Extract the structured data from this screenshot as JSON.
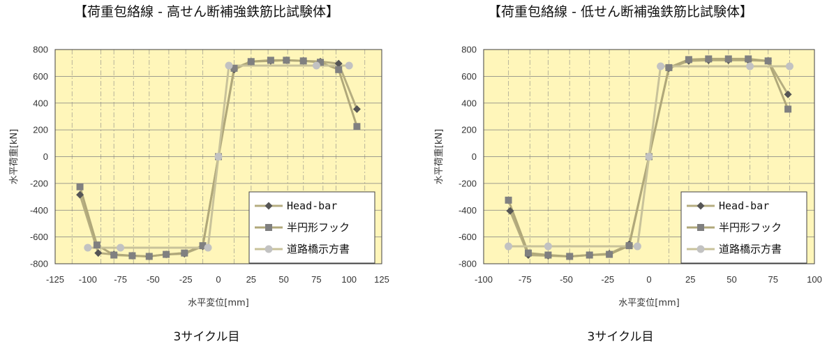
{
  "chart_data": [
    {
      "type": "line",
      "title": "【荷重包絡線 - 高せん断補強鉄筋比試験体】",
      "caption": "3サイクル目",
      "xlabel": "水平変位[mm]",
      "ylabel": "水平荷重[kN]",
      "xlim": [
        -125,
        125
      ],
      "ylim": [
        -800,
        800
      ],
      "xticks": [
        -125,
        -100,
        -75,
        -50,
        -25,
        0,
        25,
        50,
        75,
        100,
        125
      ],
      "yticks": [
        -800,
        -600,
        -400,
        -200,
        0,
        200,
        400,
        600,
        800
      ],
      "vgrid": [
        -112,
        -90,
        -80,
        -65,
        -53,
        -38,
        -25,
        -12,
        12,
        25,
        38,
        53,
        65,
        80,
        90,
        112
      ],
      "background": "#fff6ba",
      "legend_position": "bottom-right",
      "series": [
        {
          "name": "Head-bar",
          "marker": "diamond",
          "color": "#b5ad80",
          "marker_color": "#555555",
          "x": [
            -106,
            -92,
            -80,
            -66,
            -53,
            -40,
            -26,
            -12,
            0,
            12,
            25,
            40,
            52,
            65,
            78,
            92,
            106
          ],
          "y": [
            -285,
            -720,
            -730,
            -740,
            -745,
            -730,
            -725,
            -670,
            0,
            650,
            710,
            715,
            720,
            715,
            710,
            695,
            355
          ]
        },
        {
          "name": "半円形フック",
          "marker": "square",
          "color": "#b0a87a",
          "marker_color": "#808080",
          "x": [
            -106,
            -93,
            -80,
            -66,
            -53,
            -40,
            -26,
            -12,
            0,
            12,
            25,
            40,
            52,
            65,
            78,
            92,
            106
          ],
          "y": [
            -225,
            -660,
            -735,
            -740,
            -745,
            -730,
            -720,
            -665,
            0,
            660,
            710,
            720,
            720,
            715,
            705,
            650,
            225
          ]
        },
        {
          "name": "道路橋示方書",
          "marker": "circle",
          "color": "#c8c29a",
          "marker_color": "#c2c2c2",
          "x": [
            -100,
            -75,
            -8,
            0,
            8,
            75,
            100
          ],
          "y": [
            -680,
            -680,
            -680,
            0,
            680,
            680,
            680
          ]
        }
      ]
    },
    {
      "type": "line",
      "title": "【荷重包絡線 - 低せん断補強鉄筋比試験体】",
      "caption": "3サイクル目",
      "xlabel": "水平変位[mm]",
      "ylabel": "水平荷重[kN]",
      "xlim": [
        -100,
        100
      ],
      "ylim": [
        -800,
        800
      ],
      "xticks": [
        -100,
        -75,
        -50,
        -25,
        0,
        25,
        50,
        75,
        100
      ],
      "yticks": [
        -800,
        -600,
        -400,
        -200,
        0,
        200,
        400,
        600,
        800
      ],
      "vgrid": [
        -85,
        -72,
        -61,
        -48,
        -36,
        -24,
        -12,
        12,
        24,
        36,
        48,
        61,
        72,
        85
      ],
      "background": "#fff6ba",
      "legend_position": "bottom-right",
      "series": [
        {
          "name": "Head-bar",
          "marker": "diamond",
          "color": "#b5ad80",
          "marker_color": "#555555",
          "x": [
            -84,
            -73,
            -61,
            -48,
            -36,
            -24,
            -12,
            0,
            12,
            24,
            36,
            48,
            60,
            72,
            84
          ],
          "y": [
            -405,
            -735,
            -740,
            -745,
            -735,
            -725,
            -655,
            0,
            660,
            715,
            720,
            720,
            720,
            715,
            465
          ]
        },
        {
          "name": "半円形フック",
          "marker": "square",
          "color": "#b0a87a",
          "marker_color": "#808080",
          "x": [
            -85,
            -73,
            -61,
            -48,
            -36,
            -24,
            -12,
            0,
            12,
            24,
            36,
            48,
            60,
            72,
            84
          ],
          "y": [
            -325,
            -720,
            -735,
            -745,
            -735,
            -730,
            -665,
            0,
            665,
            725,
            730,
            730,
            730,
            715,
            355
          ]
        },
        {
          "name": "道路橋示方書",
          "marker": "circle",
          "color": "#c8c29a",
          "marker_color": "#c2c2c2",
          "x": [
            -85,
            -61,
            -7,
            0,
            7,
            61,
            85
          ],
          "y": [
            -670,
            -670,
            -670,
            0,
            675,
            675,
            675
          ]
        }
      ]
    }
  ]
}
